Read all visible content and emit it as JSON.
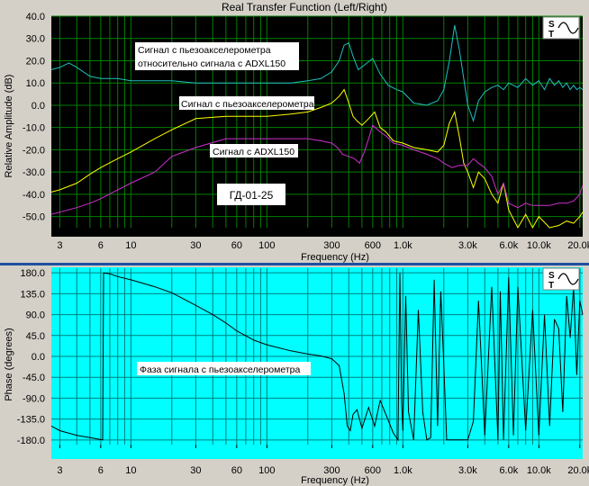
{
  "window": {
    "title": "Real Transfer Function (Left/Right)"
  },
  "colors": {
    "top_bg": "#000000",
    "bottom_bg": "#00ffff",
    "top_grid": "#008000",
    "bottom_grid": "#007f7f",
    "separator": "#1f4fa0",
    "cyan_series": "#20c0c0",
    "yellow_series": "#ffff00",
    "magenta_series": "#d030d0",
    "phase_series": "#000000"
  },
  "icons": [
    "st-sine-icon",
    "st-sine-icon"
  ],
  "chart_data": [
    {
      "type": "line",
      "title": "Real Transfer Function (Left/Right)",
      "xlabel": "Frequency (Hz)",
      "ylabel": "Relative Amplitude (dB)",
      "xscale": "log",
      "xlim": [
        2.6,
        21000
      ],
      "ylim": [
        -55,
        40
      ],
      "x_ticks": [
        3,
        6,
        10,
        30,
        60,
        100,
        300,
        600,
        1000,
        3000,
        6000,
        10000,
        20000
      ],
      "x_tick_labels": [
        "3",
        "6",
        "10",
        "30",
        "60",
        "100",
        "300",
        "600",
        "1.0k",
        "3.0k",
        "6.0k",
        "10.0k",
        "20.0k"
      ],
      "y_ticks": [
        40,
        30,
        20,
        10,
        0,
        -10,
        -20,
        -30,
        -40,
        -50
      ],
      "y_tick_labels": [
        "40.0",
        "30.0",
        "20.0",
        "10.0",
        "0.0",
        "-10.0",
        "-20.0",
        "-30.0",
        "-40.0",
        "-50.0"
      ],
      "grid": true,
      "series": [
        {
          "name": "Сигнал с пьезоакселерометра относительно сигнала с ADXL150",
          "color": "#20c0c0",
          "x": [
            2.6,
            3,
            3.5,
            4,
            5,
            6,
            8,
            10,
            15,
            20,
            30,
            50,
            80,
            100,
            150,
            200,
            250,
            300,
            340,
            370,
            400,
            430,
            470,
            520,
            600,
            680,
            780,
            900,
            1000,
            1200,
            1500,
            1800,
            2000,
            2200,
            2400,
            2600,
            2800,
            3000,
            3300,
            3600,
            4000,
            4500,
            5000,
            5500,
            6000,
            7000,
            8000,
            9000,
            10000,
            11000,
            12000,
            13000,
            14000,
            15000,
            16000,
            17000,
            18000,
            19000,
            20000,
            21000
          ],
          "values": [
            16,
            17,
            19,
            17,
            13,
            12,
            12,
            11,
            11,
            11,
            10,
            10,
            10,
            10,
            10,
            11,
            12,
            15,
            20,
            27,
            28,
            22,
            16,
            18,
            21,
            14,
            9,
            7,
            6,
            1,
            0,
            2,
            7,
            20,
            36,
            25,
            12,
            0,
            -7,
            2,
            6,
            8,
            9,
            7,
            10,
            8,
            12,
            9,
            11,
            7,
            12,
            9,
            11,
            8,
            10,
            7,
            9,
            7,
            8,
            7
          ]
        },
        {
          "name": "Сигнал с пьезоакселерометра",
          "color": "#ffff00",
          "x": [
            2.6,
            3,
            4,
            5,
            6,
            8,
            10,
            15,
            20,
            30,
            50,
            80,
            100,
            150,
            200,
            250,
            300,
            340,
            370,
            400,
            430,
            460,
            500,
            560,
            620,
            680,
            750,
            850,
            1000,
            1200,
            1500,
            1800,
            2000,
            2200,
            2400,
            2600,
            2800,
            3000,
            3300,
            3600,
            4000,
            4500,
            5000,
            5500,
            6000,
            7000,
            8000,
            9000,
            10000,
            12000,
            14000,
            16000,
            18000,
            20000,
            21000
          ],
          "values": [
            -39,
            -38,
            -35,
            -31,
            -28,
            -24,
            -21,
            -15,
            -11,
            -6,
            -5,
            -5,
            -5,
            -4,
            -3,
            -1,
            1,
            4,
            7,
            1,
            -5,
            -7,
            -9,
            -6,
            -3,
            -10,
            -12,
            -16,
            -17,
            -19,
            -20,
            -21,
            -18,
            -8,
            -3,
            -14,
            -26,
            -30,
            -37,
            -30,
            -33,
            -40,
            -44,
            -35,
            -47,
            -55,
            -49,
            -55,
            -50,
            -56,
            -54,
            -52,
            -53,
            -50,
            -48
          ]
        },
        {
          "name": "Сигнал с ADXL150",
          "color": "#d030d0",
          "x": [
            2.6,
            3,
            4,
            5,
            6,
            8,
            10,
            15,
            20,
            30,
            50,
            80,
            100,
            150,
            200,
            250,
            300,
            330,
            360,
            400,
            440,
            480,
            520,
            560,
            600,
            680,
            760,
            850,
            1000,
            1200,
            1500,
            1800,
            2000,
            2300,
            2600,
            3000,
            3300,
            3600,
            4000,
            4500,
            5000,
            5500,
            6000,
            7000,
            8000,
            9000,
            10000,
            12000,
            14000,
            16000,
            18000,
            20000,
            21000
          ],
          "values": [
            -49,
            -48,
            -46,
            -44,
            -42,
            -38,
            -35,
            -30,
            -23,
            -19,
            -15,
            -15,
            -15,
            -15,
            -15,
            -16,
            -17,
            -19,
            -22,
            -23,
            -24,
            -26,
            -21,
            -15,
            -9,
            -12,
            -14,
            -17,
            -18,
            -20,
            -22,
            -24,
            -26,
            -28,
            -27,
            -27,
            -24,
            -26,
            -28,
            -32,
            -40,
            -35,
            -44,
            -46,
            -44,
            -45,
            -45,
            -45,
            -44,
            -44,
            -43,
            -40,
            -36
          ]
        }
      ],
      "annotations": [
        "Сигнал с пьезоакселерометра",
        "относительно сигнала с ADXL150",
        "Сигнал с пьезоакселерометра",
        "Сигнал с ADXL150",
        "ГД-01-25"
      ]
    },
    {
      "type": "line",
      "xlabel": "Frequency (Hz)",
      "ylabel": "Phase (degrees)",
      "xscale": "log",
      "xlim": [
        2.6,
        21000
      ],
      "ylim": [
        -190,
        190
      ],
      "x_ticks": [
        3,
        6,
        10,
        30,
        60,
        100,
        300,
        600,
        1000,
        3000,
        6000,
        10000,
        20000
      ],
      "x_tick_labels": [
        "3",
        "6",
        "10",
        "30",
        "60",
        "100",
        "300",
        "600",
        "1.0k",
        "3.0k",
        "6.0k",
        "10.0k",
        "20.0k"
      ],
      "y_ticks": [
        180,
        135,
        90,
        45,
        0,
        -45,
        -90,
        -135,
        -180
      ],
      "y_tick_labels": [
        "180.0",
        "135.0",
        "90.0",
        "45.0",
        "0.0",
        "-45.0",
        "-90.0",
        "-135.0",
        "-180.0"
      ],
      "grid": true,
      "series": [
        {
          "name": "Фаза сигнала с пьезоакселерометра",
          "color": "#000000",
          "x": [
            2.6,
            3,
            4,
            5,
            6.2,
            6.3,
            7,
            8,
            10,
            15,
            20,
            30,
            40,
            50,
            60,
            80,
            100,
            150,
            200,
            250,
            300,
            340,
            370,
            390,
            410,
            430,
            460,
            500,
            560,
            620,
            680,
            750,
            850,
            920,
            950,
            980,
            1000,
            1050,
            1100,
            1200,
            1300,
            1400,
            1500,
            1600,
            1700,
            1800,
            1900,
            2000,
            2100,
            2200,
            2400,
            2600,
            2800,
            3000,
            3300,
            3600,
            4000,
            4500,
            5000,
            5200,
            5500,
            6000,
            6500,
            7000,
            8000,
            9000,
            10000,
            11000,
            12000,
            13000,
            14000,
            15000,
            16000,
            17000,
            18000,
            19000,
            20000,
            21000
          ],
          "values": [
            -150,
            -160,
            -170,
            -175,
            -180,
            180,
            178,
            172,
            165,
            150,
            137,
            110,
            90,
            72,
            55,
            35,
            25,
            12,
            5,
            1,
            -5,
            -20,
            -80,
            -150,
            -160,
            -125,
            -115,
            -155,
            -110,
            -150,
            -95,
            -125,
            -165,
            -180,
            180,
            -100,
            -160,
            130,
            -120,
            -180,
            100,
            -120,
            -180,
            -175,
            165,
            -150,
            140,
            -20,
            -180,
            -180,
            -180,
            -180,
            -180,
            -180,
            -140,
            120,
            -170,
            150,
            -180,
            140,
            -180,
            170,
            -170,
            150,
            -160,
            100,
            -170,
            90,
            -150,
            80,
            60,
            -120,
            130,
            40,
            150,
            -40,
            120,
            90
          ]
        }
      ],
      "annotations": [
        "Фаза сигнала с пьезоакселерометра"
      ]
    }
  ]
}
